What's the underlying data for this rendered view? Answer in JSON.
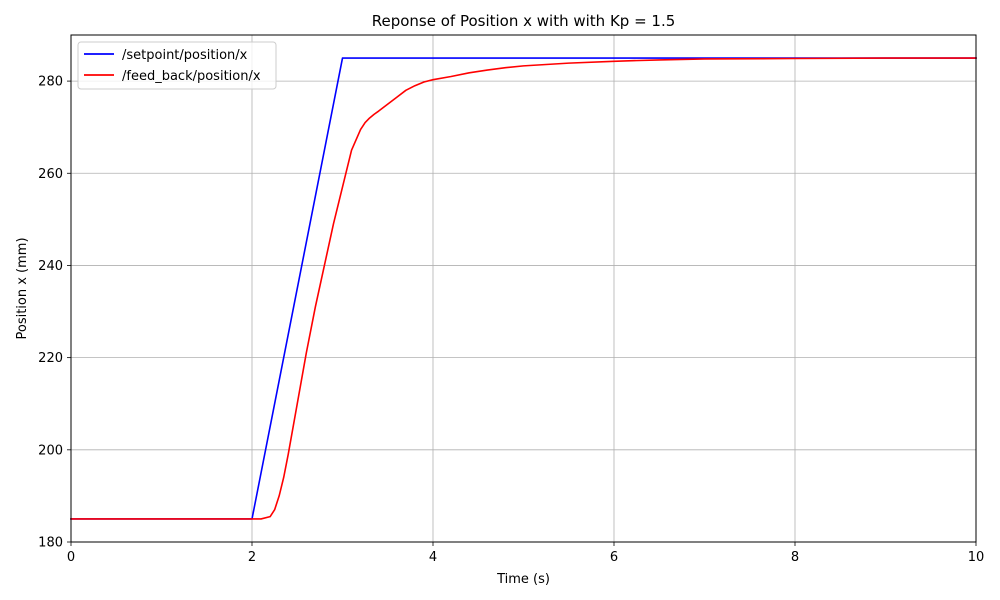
{
  "chart_data": {
    "type": "line",
    "title": "Reponse of Position x with with Kp = 1.5",
    "xlabel": "Time (s)",
    "ylabel": "Position x (mm)",
    "xlim": [
      0,
      10
    ],
    "ylim": [
      180,
      290
    ],
    "xticks": [
      0,
      2,
      4,
      6,
      8,
      10
    ],
    "yticks": [
      180,
      200,
      220,
      240,
      260,
      280
    ],
    "grid": true,
    "legend_position": "top-left",
    "series": [
      {
        "name": "/setpoint/position/x",
        "color": "#0000ff",
        "x": [
          0,
          2.0,
          3.0,
          10
        ],
        "y": [
          185,
          185,
          285,
          285
        ]
      },
      {
        "name": "/feed_back/position/x",
        "color": "#ff0000",
        "x": [
          0,
          2.1,
          2.2,
          2.25,
          2.3,
          2.35,
          2.4,
          2.5,
          2.6,
          2.7,
          2.8,
          2.9,
          3.0,
          3.1,
          3.2,
          3.25,
          3.3,
          3.35,
          3.4,
          3.5,
          3.6,
          3.7,
          3.8,
          3.9,
          4.0,
          4.2,
          4.4,
          4.6,
          4.8,
          5.0,
          5.5,
          6.0,
          6.5,
          7.0,
          8.0,
          9.0,
          10.0
        ],
        "y": [
          185,
          185,
          185.5,
          187,
          190,
          194,
          199,
          210,
          221,
          231,
          240,
          249,
          257,
          265,
          269.5,
          271,
          272,
          272.8,
          273.5,
          275,
          276.5,
          278,
          279,
          279.8,
          280.3,
          281,
          281.8,
          282.4,
          282.9,
          283.3,
          283.9,
          284.3,
          284.6,
          284.8,
          284.9,
          285,
          285
        ]
      }
    ]
  }
}
